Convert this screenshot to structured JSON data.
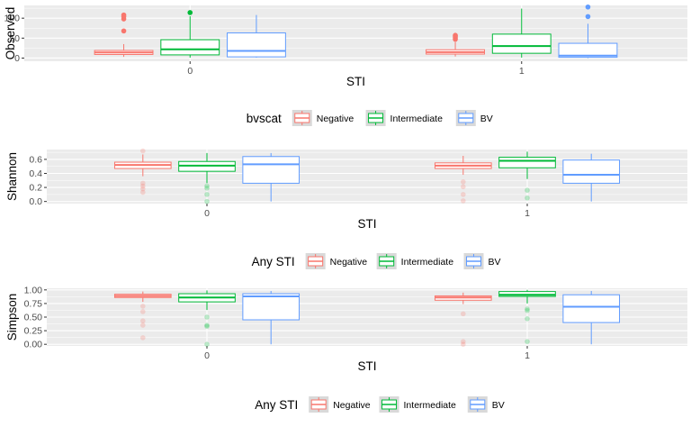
{
  "colors": {
    "negative": "#F8766D",
    "intermediate": "#00BA38",
    "bv": "#619CFF",
    "panel_bg": "#EBEBEB",
    "grid": "#FFFFFF",
    "tick_text": "#4D4D4D"
  },
  "chart_data": [
    {
      "type": "box",
      "ylabel": "Observed",
      "xlabel": "STI",
      "categories": [
        "0",
        "1"
      ],
      "yticks": [
        0,
        50,
        100
      ],
      "ylim": [
        -8,
        132
      ],
      "legend": {
        "title": "bvscat",
        "entries": [
          "Negative",
          "Intermediate",
          "BV"
        ],
        "position": "bottom"
      },
      "series": [
        {
          "name": "Negative",
          "color_key": "negative",
          "boxes": [
            {
              "category": "0",
              "min": 3,
              "q1": 9,
              "median": 14,
              "q3": 19,
              "max": 35,
              "outliers": [
                68,
                98,
                104,
                108
              ]
            },
            {
              "category": "1",
              "min": 4,
              "q1": 10,
              "median": 15,
              "q3": 21,
              "max": 40,
              "outliers": [
                47,
                51,
                55,
                57
              ]
            }
          ]
        },
        {
          "name": "Intermediate",
          "color_key": "intermediate",
          "boxes": [
            {
              "category": "0",
              "min": 1,
              "q1": 8,
              "median": 22,
              "q3": 46,
              "max": 105,
              "outliers": [
                114
              ]
            },
            {
              "category": "1",
              "min": 1,
              "q1": 12,
              "median": 30,
              "q3": 60,
              "max": 124,
              "outliers": []
            }
          ]
        },
        {
          "name": "BV",
          "color_key": "bv",
          "boxes": [
            {
              "category": "0",
              "min": 1,
              "q1": 3,
              "median": 18,
              "q3": 63,
              "max": 108,
              "outliers": []
            },
            {
              "category": "1",
              "min": 0,
              "q1": 2,
              "median": 6,
              "q3": 37,
              "max": 86,
              "outliers": [
                104,
                128
              ]
            }
          ]
        }
      ]
    },
    {
      "type": "box",
      "ylabel": "Shannon",
      "xlabel": "STI",
      "categories": [
        "0",
        "1"
      ],
      "yticks": [
        0.0,
        0.2,
        0.4,
        0.6
      ],
      "ytick_labels": [
        "0.0",
        "0.2",
        "0.4",
        "0.6"
      ],
      "ylim": [
        -0.03,
        0.74
      ],
      "legend": {
        "title": "Any STI",
        "entries": [
          "Negative",
          "Intermediate",
          "BV"
        ],
        "position": "bottom"
      },
      "series": [
        {
          "name": "Negative",
          "color_key": "negative",
          "boxes": [
            {
              "category": "0",
              "min": 0.36,
              "q1": 0.47,
              "median": 0.52,
              "q3": 0.56,
              "max": 0.67,
              "outliers": [
                0.13,
                0.18,
                0.22,
                0.26,
                0.72
              ]
            },
            {
              "category": "1",
              "min": 0.38,
              "q1": 0.47,
              "median": 0.51,
              "q3": 0.55,
              "max": 0.65,
              "outliers": [
                0.01,
                0.1,
                0.21,
                0.28
              ]
            }
          ]
        },
        {
          "name": "Intermediate",
          "color_key": "intermediate",
          "boxes": [
            {
              "category": "0",
              "min": 0.26,
              "q1": 0.43,
              "median": 0.51,
              "q3": 0.57,
              "max": 0.69,
              "outliers": [
                0.0,
                0.1,
                0.19,
                0.22
              ]
            },
            {
              "category": "1",
              "min": 0.32,
              "q1": 0.48,
              "median": 0.58,
              "q3": 0.63,
              "max": 0.71,
              "outliers": [
                0.05,
                0.16
              ]
            }
          ]
        },
        {
          "name": "BV",
          "color_key": "bv",
          "boxes": [
            {
              "category": "0",
              "min": 0.0,
              "q1": 0.26,
              "median": 0.53,
              "q3": 0.64,
              "max": 0.69,
              "outliers": []
            },
            {
              "category": "1",
              "min": 0.0,
              "q1": 0.26,
              "median": 0.38,
              "q3": 0.59,
              "max": 0.68,
              "outliers": []
            }
          ]
        }
      ]
    },
    {
      "type": "box",
      "ylabel": "Simpson",
      "xlabel": "STI",
      "categories": [
        "0",
        "1"
      ],
      "yticks": [
        0.0,
        0.25,
        0.5,
        0.75,
        1.0
      ],
      "ytick_labels": [
        "0.00",
        "0.25",
        "0.50",
        "0.75",
        "1.00"
      ],
      "ylim": [
        -0.03,
        1.03
      ],
      "legend": {
        "title": "Any STI",
        "entries": [
          "Negative",
          "Intermediate",
          "BV"
        ],
        "position": "bottom"
      },
      "series": [
        {
          "name": "Negative",
          "color_key": "negative",
          "boxes": [
            {
              "category": "0",
              "min": 0.78,
              "q1": 0.86,
              "median": 0.89,
              "q3": 0.92,
              "max": 0.97,
              "outliers": [
                0.12,
                0.35,
                0.43,
                0.6,
                0.7
              ]
            },
            {
              "category": "1",
              "min": 0.74,
              "q1": 0.81,
              "median": 0.86,
              "q3": 0.89,
              "max": 0.95,
              "outliers": [
                0.0,
                0.05,
                0.56
              ]
            }
          ]
        },
        {
          "name": "Intermediate",
          "color_key": "intermediate",
          "boxes": [
            {
              "category": "0",
              "min": 0.63,
              "q1": 0.78,
              "median": 0.86,
              "q3": 0.93,
              "max": 0.99,
              "outliers": [
                0.0,
                0.33,
                0.35,
                0.5
              ]
            },
            {
              "category": "1",
              "min": 0.75,
              "q1": 0.88,
              "median": 0.91,
              "q3": 0.97,
              "max": 1.0,
              "outliers": [
                0.05,
                0.47,
                0.62,
                0.65
              ]
            }
          ]
        },
        {
          "name": "BV",
          "color_key": "bv",
          "boxes": [
            {
              "category": "0",
              "min": 0.0,
              "q1": 0.45,
              "median": 0.88,
              "q3": 0.93,
              "max": 0.98,
              "outliers": []
            },
            {
              "category": "1",
              "min": 0.0,
              "q1": 0.4,
              "median": 0.69,
              "q3": 0.91,
              "max": 0.98,
              "outliers": []
            }
          ]
        }
      ]
    }
  ]
}
